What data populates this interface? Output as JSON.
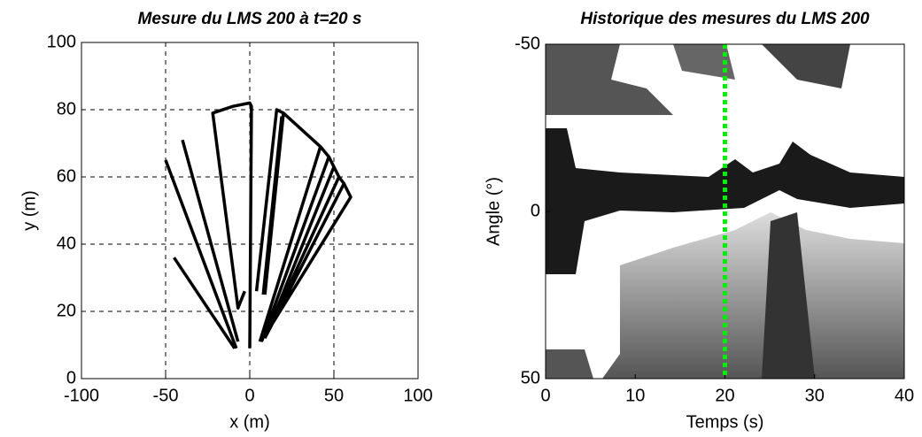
{
  "chart_data": [
    {
      "type": "line",
      "title": "Mesure du LMS 200 à t=20 s",
      "x_label": "x (m)",
      "y_label": "y (m)",
      "xlim": [
        -100,
        100
      ],
      "ylim": [
        0,
        100
      ],
      "xticks": [
        -100,
        -50,
        0,
        50,
        100
      ],
      "yticks": [
        0,
        20,
        40,
        60,
        80,
        100
      ],
      "grid": true,
      "series": [
        {
          "color": "#000000",
          "x": [
            -50,
            -8,
            null,
            -40,
            -7,
            null,
            -45,
            -9,
            null,
            -3,
            -7,
            -22,
            -10,
            0,
            1,
            0,
            null,
            4,
            16,
            20,
            9,
            null,
            20,
            42,
            47,
            7,
            null,
            42,
            6,
            null,
            19,
            8,
            null,
            50,
            9,
            null,
            47,
            50,
            53,
            10,
            null,
            53,
            56,
            11,
            null,
            56,
            60,
            13
          ],
          "y": [
            65,
            9,
            null,
            71,
            11,
            null,
            36,
            9,
            null,
            26,
            21,
            79,
            81,
            82,
            81,
            9,
            null,
            26,
            80,
            79,
            25,
            null,
            79,
            69,
            66,
            11,
            null,
            69,
            11,
            null,
            78,
            25,
            null,
            63,
            12,
            null,
            66,
            63,
            60,
            13,
            null,
            60,
            58,
            14,
            null,
            58,
            54,
            16
          ]
        }
      ]
    },
    {
      "type": "image",
      "title": "Historique des mesures du LMS 200",
      "x_label": "Temps (s)",
      "y_label": "Angle (°)",
      "xlim": [
        0,
        40
      ],
      "ylim": [
        -50,
        50
      ],
      "y_inverted": true,
      "xticks": [
        0,
        10,
        20,
        30,
        40
      ],
      "yticks": [
        -50,
        0,
        50
      ],
      "series": [
        {
          "color": "#00ee00",
          "x": [
            20,
            20
          ],
          "y": [
            -50,
            50
          ]
        }
      ]
    }
  ]
}
